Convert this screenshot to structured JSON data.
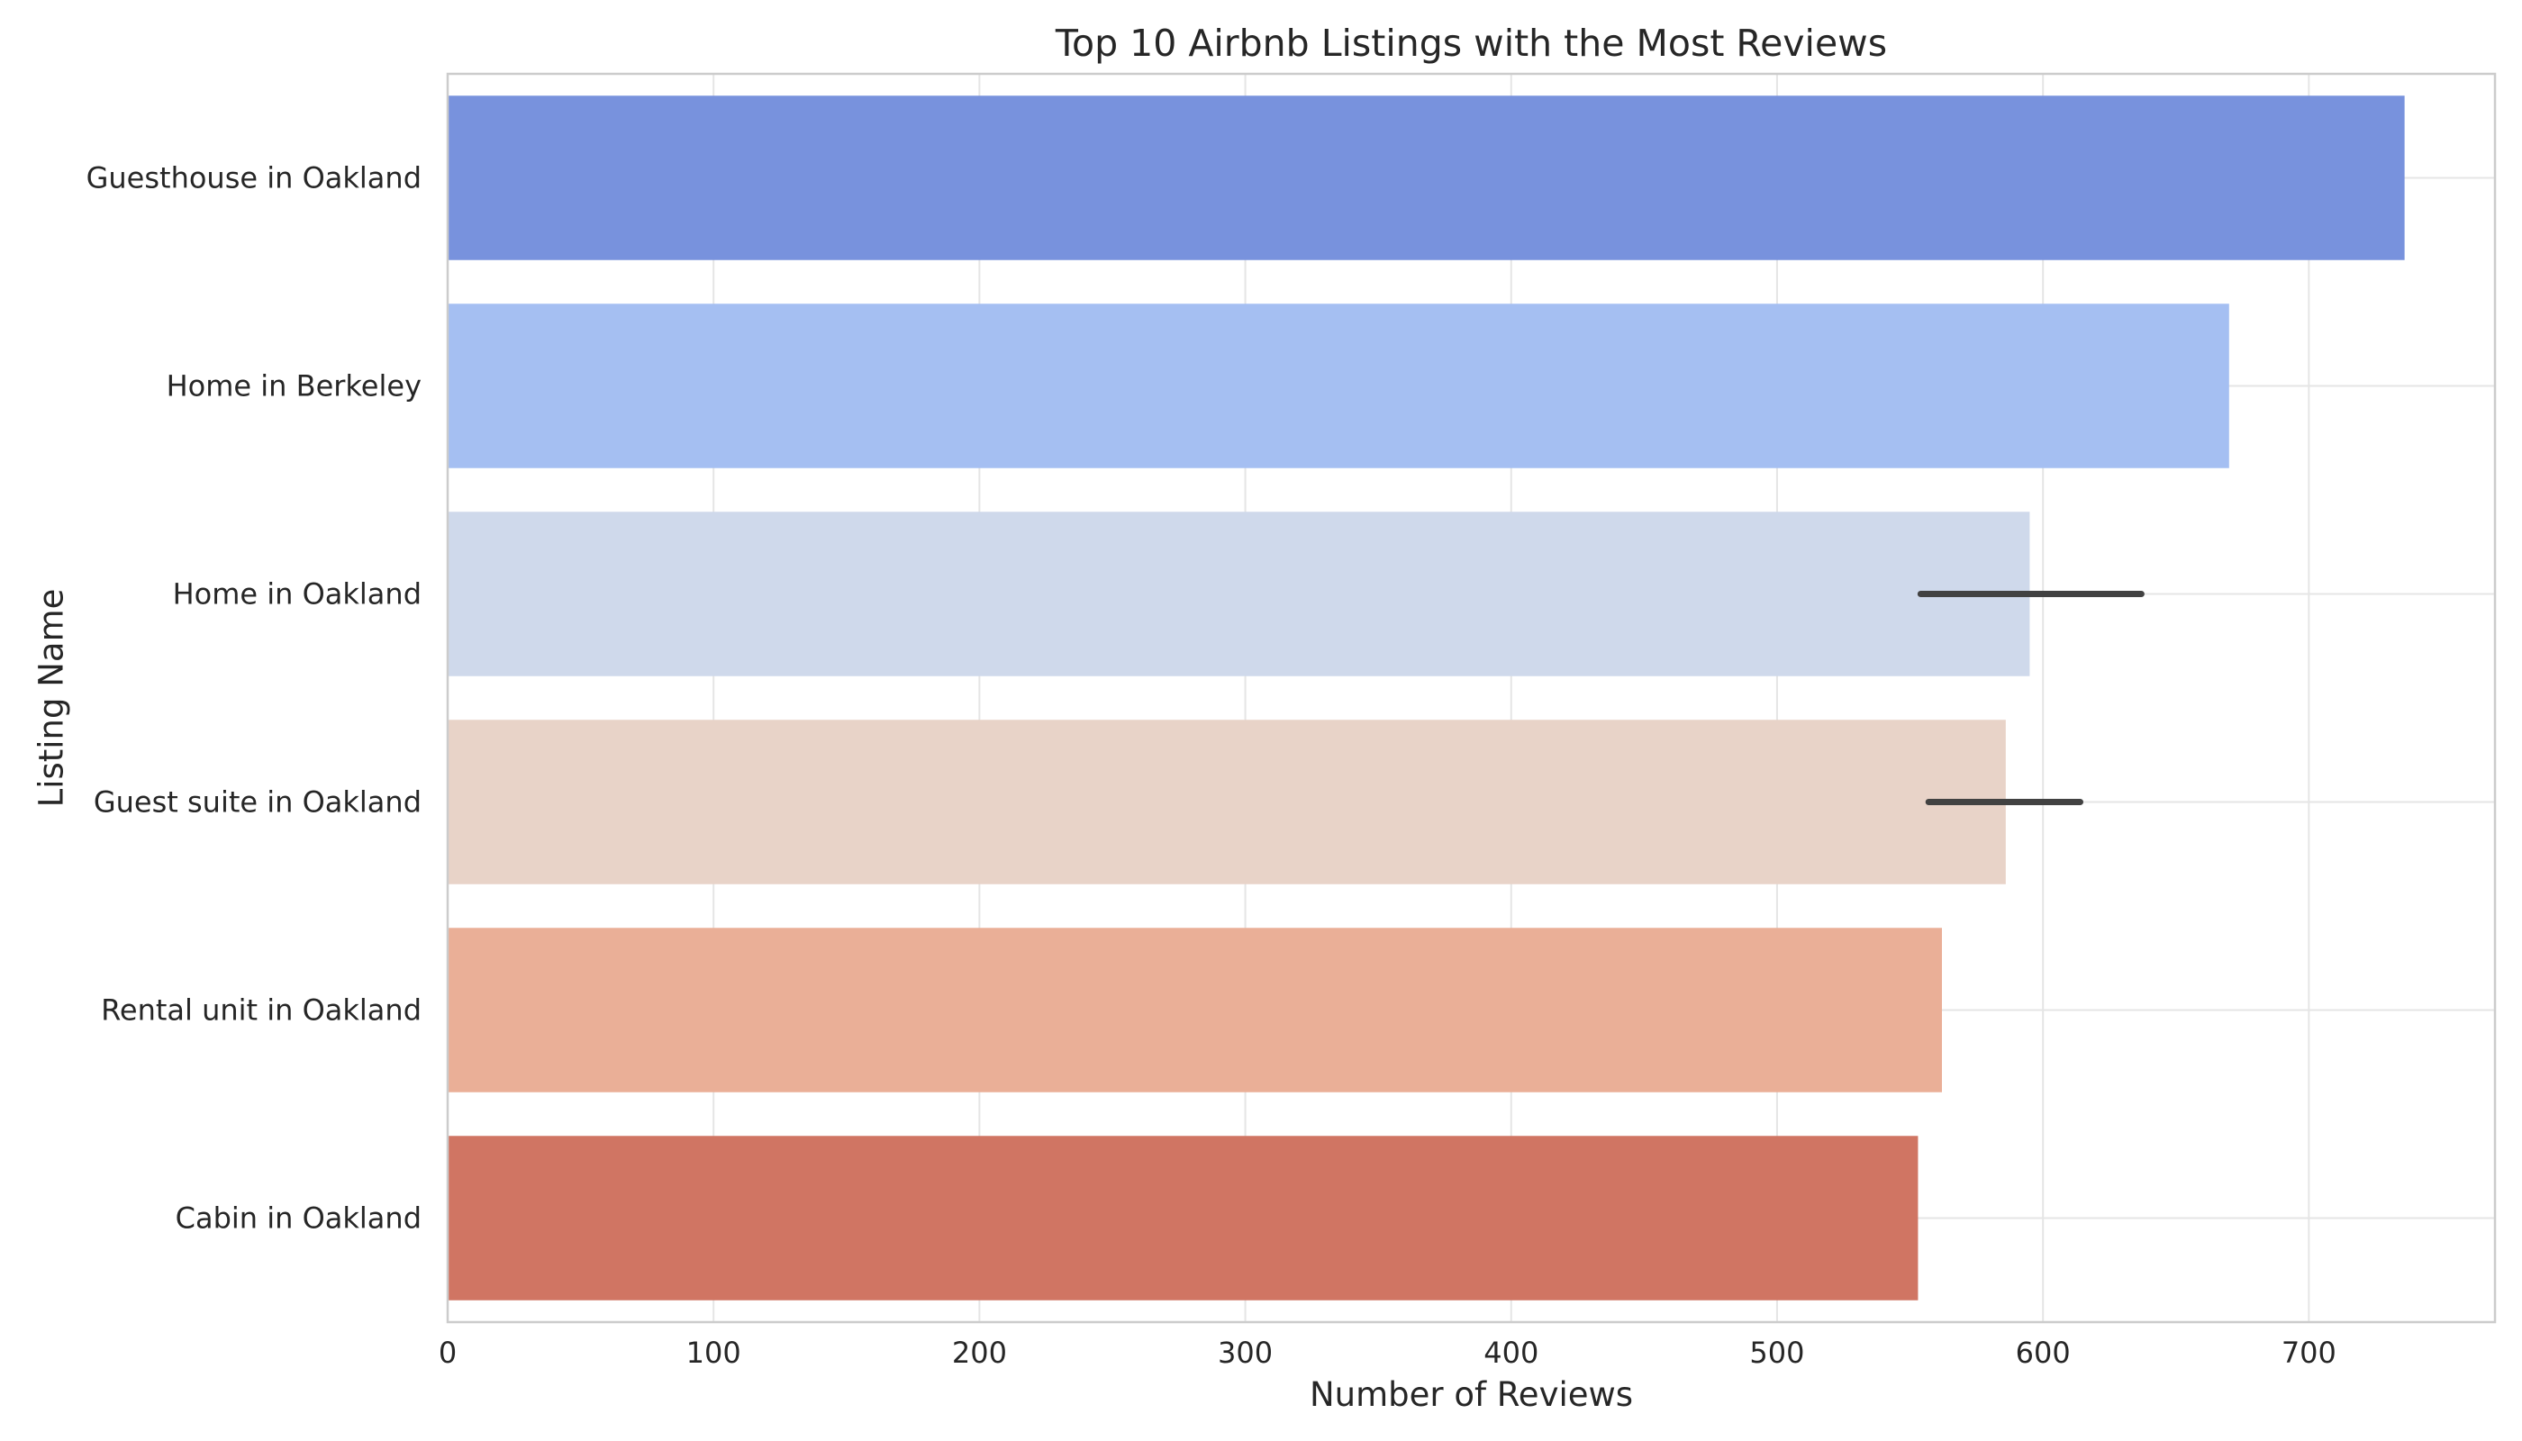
{
  "chart_data": {
    "type": "bar",
    "orientation": "horizontal",
    "title": "Top 10 Airbnb Listings with the Most Reviews",
    "xlabel": "Number of Reviews",
    "ylabel": "Listing Name",
    "categories": [
      "Guesthouse in Oakland",
      "Home in Berkeley",
      "Home in Oakland",
      "Guest suite in Oakland",
      "Rental unit in Oakland",
      "Cabin in Oakland"
    ],
    "values": [
      736,
      670,
      595,
      586,
      562,
      553
    ],
    "error_bars": [
      null,
      null,
      [
        554,
        637
      ],
      [
        557,
        614
      ],
      null,
      null
    ],
    "colors": [
      "#7892dd",
      "#a5bff2",
      "#cfd9eb",
      "#e8d3c8",
      "#eaaf97",
      "#d07563"
    ],
    "xlim": [
      0,
      770
    ],
    "xticks": [
      0,
      100,
      200,
      300,
      400,
      500,
      600,
      700
    ],
    "grid": true,
    "legend": "none"
  }
}
